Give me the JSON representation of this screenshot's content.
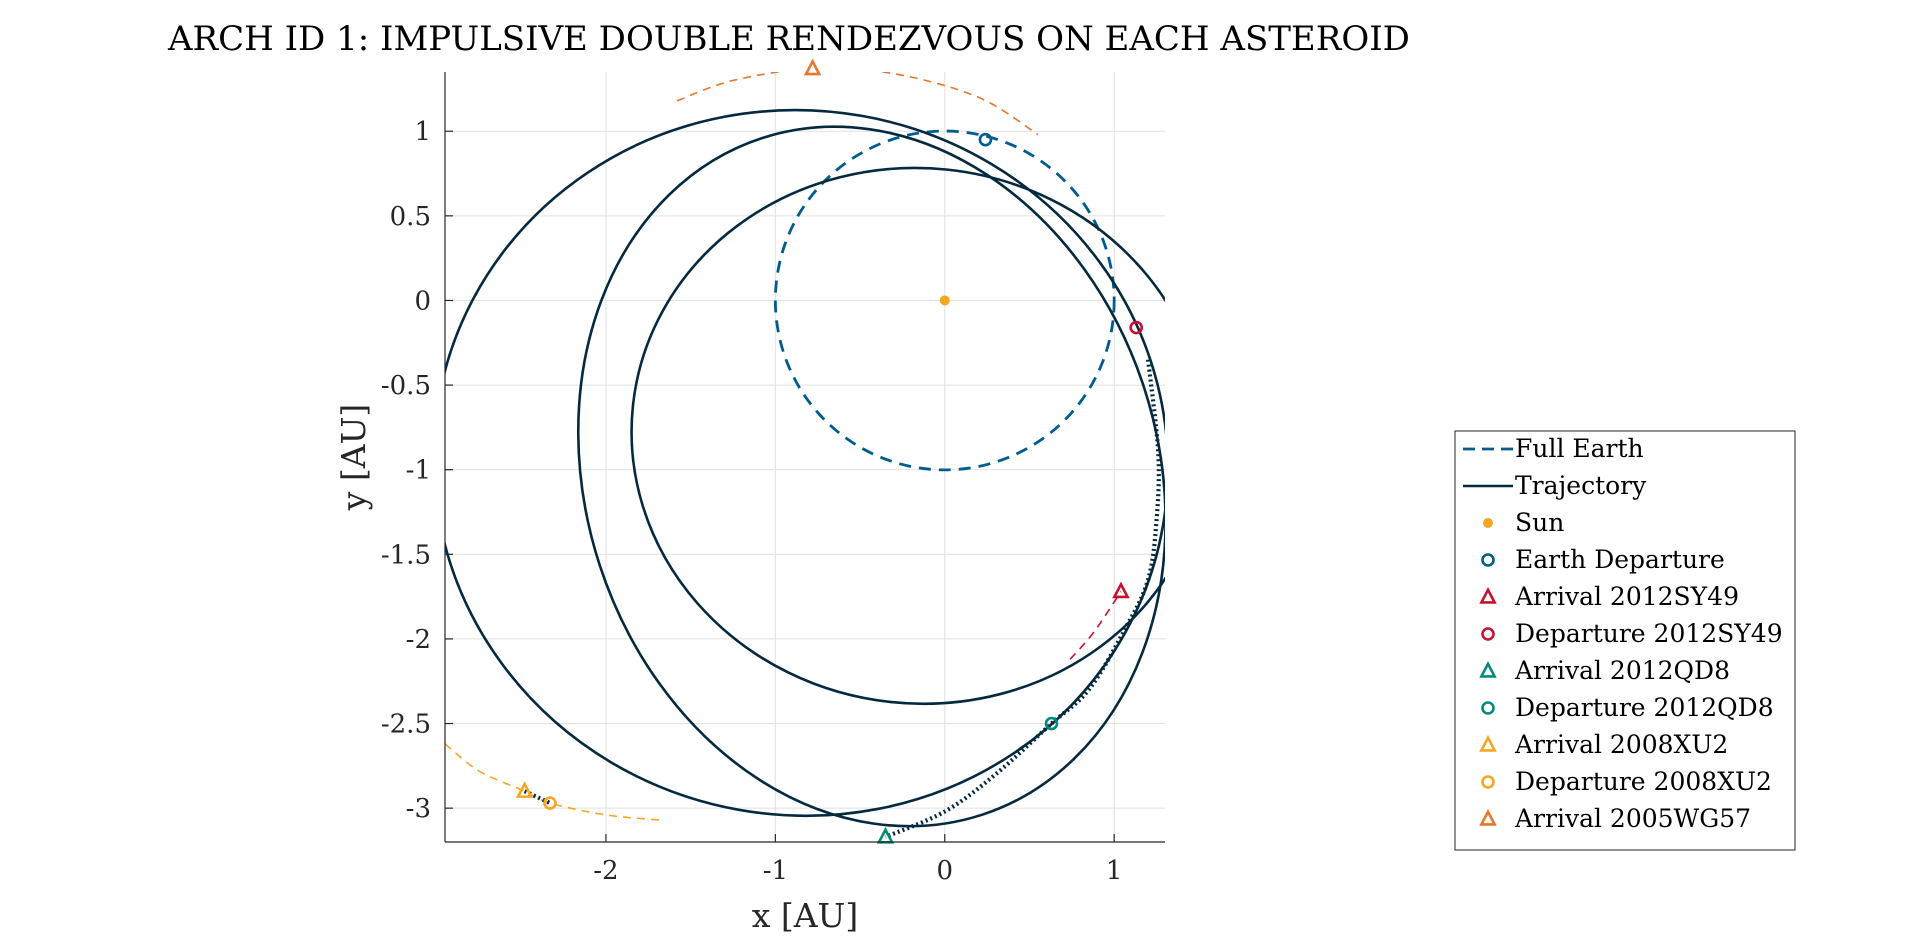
{
  "chart_data": {
    "type": "line",
    "title": "ARCH ID 1: IMPULSIVE DOUBLE RENDEZVOUS ON EACH ASTEROID",
    "xlabel": "x [AU]",
    "ylabel": "y [AU]",
    "xlim": [
      -2.95,
      1.3
    ],
    "ylim": [
      -3.2,
      1.35
    ],
    "xticks": [
      -2,
      -1,
      0,
      1
    ],
    "yticks": [
      1,
      0.5,
      0,
      -0.5,
      -1,
      -1.5,
      -2,
      -2.5,
      -3
    ],
    "grid": true,
    "legend_position": "right-outside",
    "colors": {
      "earth": "#005b8f",
      "trajectory": "#05293f",
      "sun": "#f5a623",
      "sy49": "#c8102e",
      "qd8": "#008c7a",
      "xu2": "#f5a623",
      "wg57": "#e8772e",
      "axis": "#262626",
      "grid": "#e1e1e1"
    },
    "series": [
      {
        "name": "Full Earth",
        "kind": "circle",
        "center": [
          0,
          0
        ],
        "radius": 1,
        "style": "dashed",
        "color": "#005b8f"
      },
      {
        "name": "Trajectory",
        "kind": "ellipse",
        "center": [
          -0.43,
          -1.04
        ],
        "rx": 1.69,
        "ry": 2.1,
        "rotation_deg": -18,
        "style": "solid",
        "color": "#05293f"
      },
      {
        "name": "Trajectory",
        "kind": "ellipse",
        "center": [
          -0.85,
          -0.96
        ],
        "rx": 2.17,
        "ry": 2.08,
        "rotation_deg": 10,
        "style": "solid",
        "color": "#05293f"
      },
      {
        "name": "Trajectory",
        "kind": "ellipse",
        "center": [
          -0.15,
          -0.8
        ],
        "rx": 1.7,
        "ry": 1.58,
        "rotation_deg": 6,
        "style": "solid",
        "color": "#05293f"
      },
      {
        "name": "Sun",
        "kind": "marker",
        "marker": "dot",
        "x": 0,
        "y": 0,
        "color": "#f5a623"
      },
      {
        "name": "Earth Departure",
        "kind": "marker",
        "marker": "circle",
        "x": 0.24,
        "y": 0.95,
        "color": "#005b8f"
      },
      {
        "name": "Arrival 2012SY49",
        "kind": "marker",
        "marker": "triangle",
        "x": 1.04,
        "y": -1.72,
        "color": "#c8102e"
      },
      {
        "name": "Departure 2012SY49",
        "kind": "marker",
        "marker": "circle",
        "x": 1.13,
        "y": -0.16,
        "color": "#c8102e"
      },
      {
        "name": "Arrival 2012QD8",
        "kind": "marker",
        "marker": "triangle",
        "x": -0.35,
        "y": -3.17,
        "color": "#008c7a"
      },
      {
        "name": "Departure 2012QD8",
        "kind": "marker",
        "marker": "circle",
        "x": 0.63,
        "y": -2.5,
        "color": "#008c7a"
      },
      {
        "name": "Arrival 2008XU2",
        "kind": "marker",
        "marker": "triangle",
        "x": -2.48,
        "y": -2.9,
        "color": "#f5a623"
      },
      {
        "name": "Departure 2008XU2",
        "kind": "marker",
        "marker": "circle",
        "x": -2.33,
        "y": -2.97,
        "color": "#f5a623"
      },
      {
        "name": "Arrival 2005WG57",
        "kind": "marker",
        "marker": "triangle",
        "x": -0.78,
        "y": 1.37,
        "color": "#e8772e"
      }
    ],
    "arcs": [
      {
        "name": "2005WG57 orbit segment",
        "points": [
          [
            -1.58,
            1.18
          ],
          [
            -1.25,
            1.3
          ],
          [
            -0.78,
            1.37
          ],
          [
            -0.3,
            1.34
          ],
          [
            0.2,
            1.2
          ],
          [
            0.55,
            0.98
          ]
        ],
        "color": "#e8772e"
      },
      {
        "name": "2008XU2 orbit segment",
        "points": [
          [
            -2.95,
            -2.62
          ],
          [
            -2.75,
            -2.78
          ],
          [
            -2.48,
            -2.9
          ],
          [
            -2.33,
            -2.97
          ],
          [
            -2.0,
            -3.04
          ],
          [
            -1.68,
            -3.07
          ]
        ],
        "color": "#f5a623"
      },
      {
        "name": "2012SY49 orbit segment",
        "points": [
          [
            0.74,
            -2.12
          ],
          [
            0.88,
            -1.96
          ],
          [
            1.04,
            -1.72
          ]
        ],
        "color": "#c8102e"
      }
    ],
    "dotted_segment": {
      "points": [
        [
          1.2,
          -0.35
        ],
        [
          1.26,
          -0.9
        ],
        [
          1.25,
          -1.3
        ],
        [
          1.2,
          -1.65
        ],
        [
          1.06,
          -1.95
        ],
        [
          0.85,
          -2.3
        ],
        [
          0.63,
          -2.5
        ],
        [
          0.3,
          -2.8
        ],
        [
          0.0,
          -3.02
        ],
        [
          -0.35,
          -3.17
        ]
      ],
      "color": "#05293f"
    },
    "dotted_segment_2": {
      "points": [
        [
          -2.48,
          -2.9
        ],
        [
          -2.33,
          -2.97
        ]
      ],
      "color": "#05293f"
    }
  }
}
